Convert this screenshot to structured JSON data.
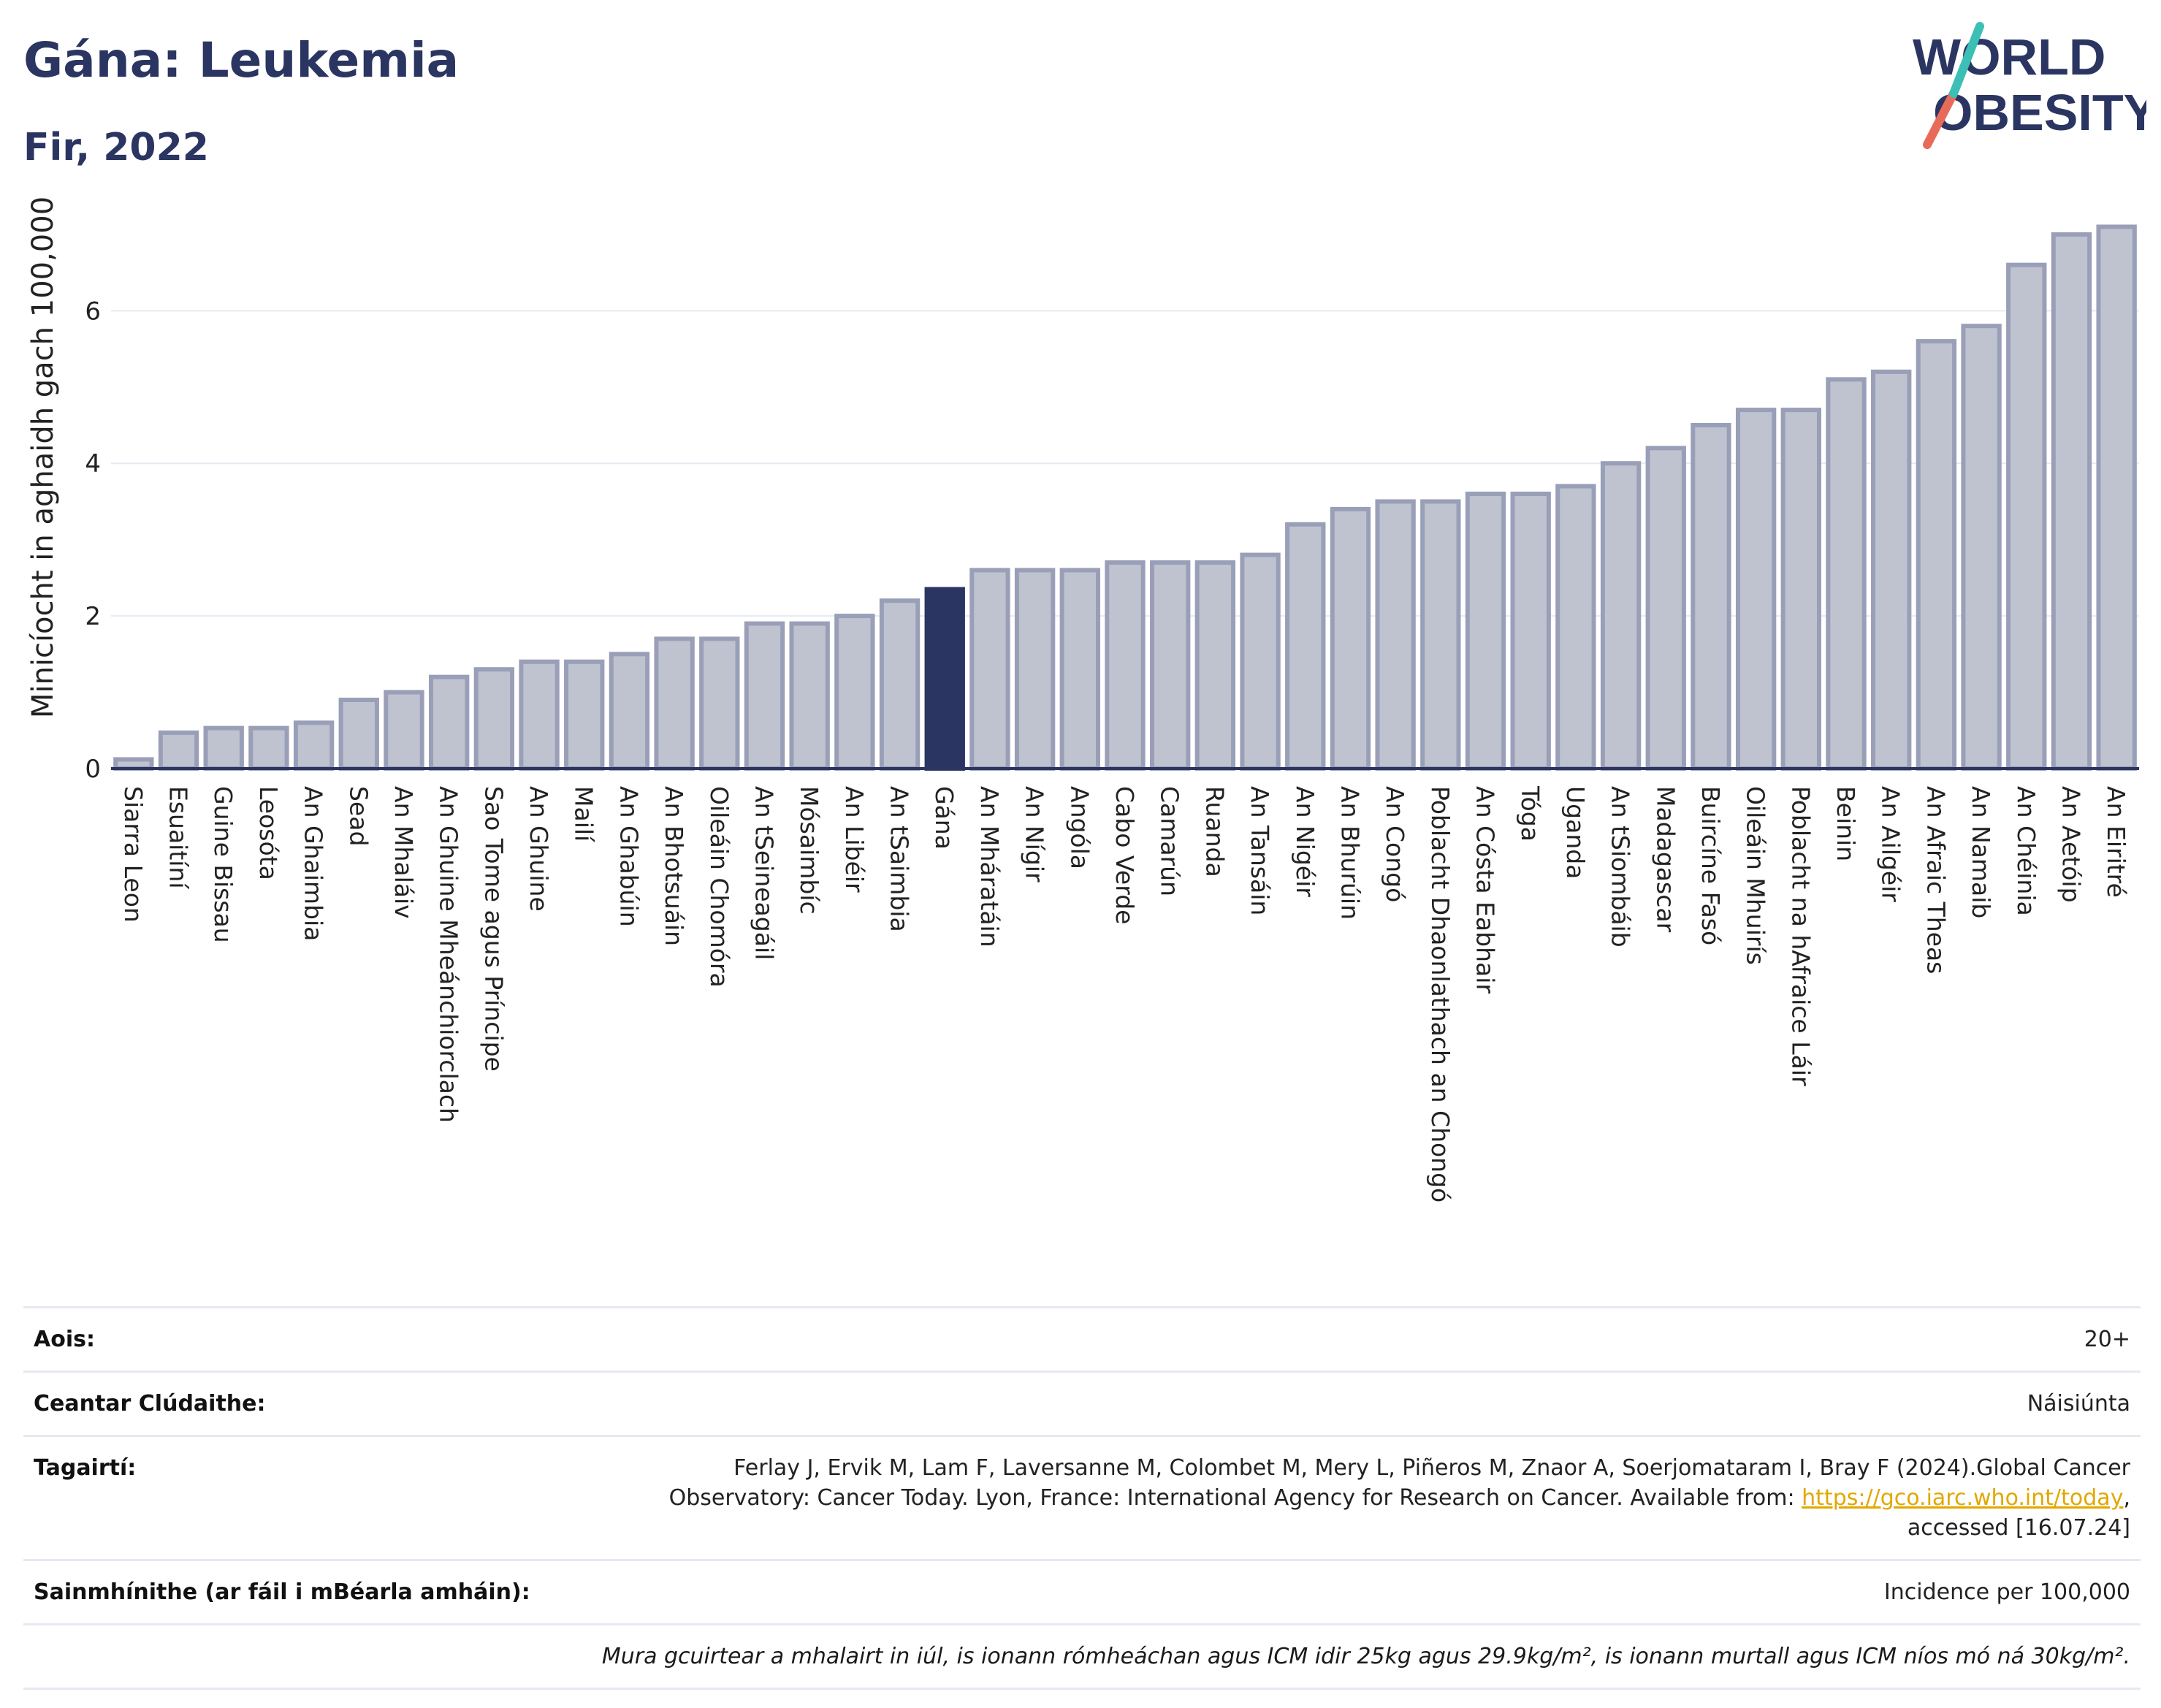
{
  "header": {
    "title": "Gána: Leukemia",
    "subtitle": "Fir, 2022",
    "logo_text_top": "WORLD",
    "logo_text_bottom": "OBESITY"
  },
  "chart_data": {
    "type": "bar",
    "ylabel": "Minicíocht in aghaidh gach 100,000",
    "xlabel": "",
    "ylim": [
      0,
      7.2
    ],
    "yticks": [
      0,
      2,
      4,
      6
    ],
    "highlight": "Gána",
    "colors": {
      "bar": "#bfc3d0",
      "bar_edge": "#9a9fb8",
      "highlight": "#2b3561",
      "grid": "#e6e9f0",
      "axis": "#2b3561"
    },
    "categories": [
      "Siarra Leon",
      "Esuaitíní",
      "Guine Bissau",
      "Leosóta",
      "An Ghaimbia",
      "Sead",
      "An Mhaláiv",
      "An Ghuine Mheánchiorclach",
      "Sao Tome agus Príncipe",
      "An Ghuine",
      "Mailí",
      "An Ghabúin",
      "An Bhotsuáin",
      "Oileáin Chomóra",
      "An tSeineagáil",
      "Mósaimbíc",
      "An Libéir",
      "An tSaimbia",
      "Gána",
      "An Mháratáin",
      "An Nígir",
      "Angóla",
      "Cabo Verde",
      "Camarún",
      "Ruanda",
      "An Tansáin",
      "An Nigéir",
      "An Bhurúin",
      "An Congó",
      "Poblacht Dhaonlathach an Chongó",
      "An Cósta Eabhair",
      "Tóga",
      "Uganda",
      "An tSiombáib",
      "Madagascar",
      "Buircíne Fasó",
      "Oileáin Mhuirís",
      "Poblacht na hAfraice Láir",
      "Beinin",
      "An Ailgéir",
      "An Afraic Theas",
      "An Namaib",
      "An Chéinia",
      "An Aetóip",
      "An Eiritré"
    ],
    "values": [
      0.12,
      0.47,
      0.53,
      0.53,
      0.6,
      0.9,
      1.0,
      1.2,
      1.3,
      1.4,
      1.4,
      1.5,
      1.7,
      1.7,
      1.9,
      1.9,
      2.0,
      2.2,
      2.35,
      2.6,
      2.6,
      2.6,
      2.7,
      2.7,
      2.7,
      2.8,
      3.2,
      3.4,
      3.5,
      3.5,
      3.6,
      3.6,
      3.7,
      4.0,
      4.2,
      4.5,
      4.7,
      4.7,
      5.1,
      5.2,
      5.6,
      5.8,
      6.6,
      7.0,
      7.1
    ]
  },
  "info": {
    "age_label": "Aois:",
    "age_value": "20+",
    "area_label": "Ceantar Clúdaithe:",
    "area_value": "Náisiúnta",
    "refs_label": "Tagairtí:",
    "refs_text": "Ferlay J, Ervik M, Lam F, Laversanne M, Colombet M, Mery L, Piñeros M, Znaor A, Soerjomataram I, Bray F (2024).Global Cancer Observatory: Cancer Today. Lyon, France: International Agency for Research on Cancer. Available from: ",
    "refs_link": "https://gco.iarc.who.int/today",
    "refs_tail": ", accessed [16.07.24]",
    "defs_label": "Sainmhínithe (ar fáil i mBéarla amháin):",
    "defs_value": "Incidence per 100,000",
    "note": "Mura gcuirtear a mhalairt in iúl, is ionann rómheáchan agus ICM idir 25kg agus 29.9kg/m², is ionann murtall agus ICM níos mó ná 30kg/m²."
  }
}
